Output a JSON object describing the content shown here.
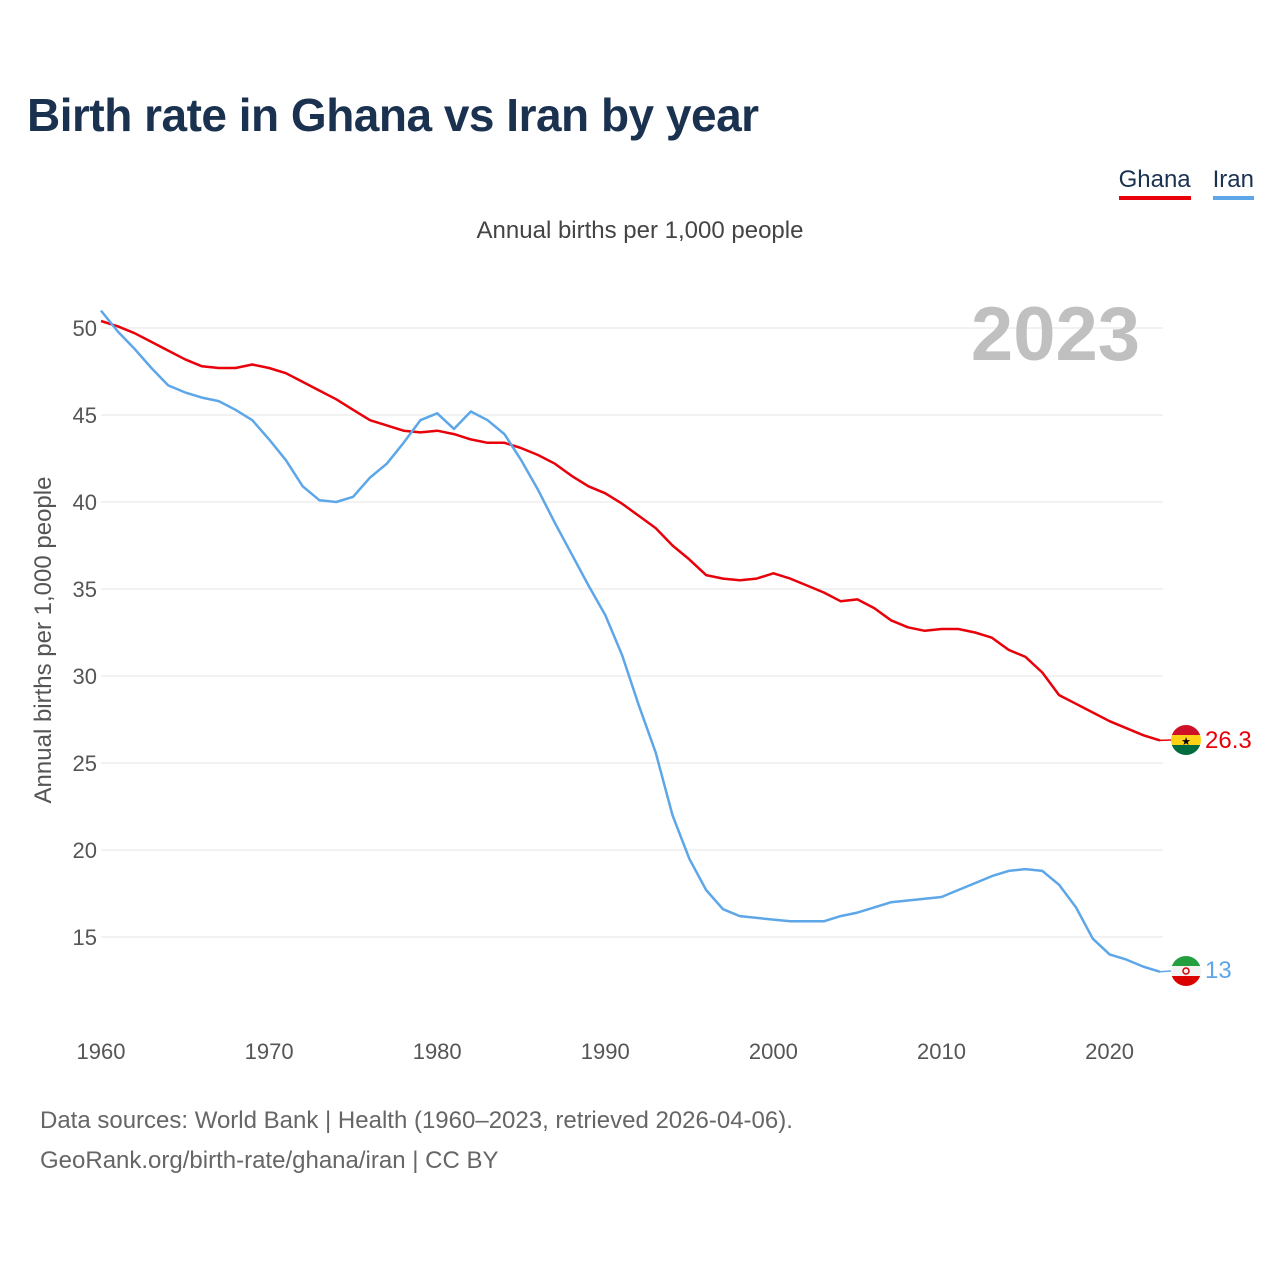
{
  "title": "Birth rate in Ghana vs Iran by year",
  "subtitle": "Annual births per 1,000 people",
  "legend": [
    "Ghana",
    "Iran"
  ],
  "footer": {
    "line1": "Data sources: World Bank | Health (1960–2023, retrieved 2026-04-06).",
    "line2": "GeoRank.org/birth-rate/ghana/iran | CC BY"
  },
  "colors": {
    "ghana": "#e8000b",
    "iran": "#5da6e8",
    "title": "#1a3150"
  },
  "chart_data": {
    "type": "line",
    "title": "Birth rate in Ghana vs Iran by year",
    "subtitle": "Annual births per 1,000 people",
    "xlabel": "",
    "ylabel": "Annual births per 1,000 people",
    "xlim": [
      1960,
      2023
    ],
    "ylim": [
      10.5,
      51.5
    ],
    "xticks": [
      1960,
      1970,
      1980,
      1990,
      2000,
      2010,
      2020
    ],
    "yticks": [
      15,
      20,
      25,
      30,
      35,
      40,
      45,
      50
    ],
    "grid": true,
    "legend_position": "top-right",
    "current_year": "2023",
    "x": [
      1960,
      1961,
      1962,
      1963,
      1964,
      1965,
      1966,
      1967,
      1968,
      1969,
      1970,
      1971,
      1972,
      1973,
      1974,
      1975,
      1976,
      1977,
      1978,
      1979,
      1980,
      1981,
      1982,
      1983,
      1984,
      1985,
      1986,
      1987,
      1988,
      1989,
      1990,
      1991,
      1992,
      1993,
      1994,
      1995,
      1996,
      1997,
      1998,
      1999,
      2000,
      2001,
      2002,
      2003,
      2004,
      2005,
      2006,
      2007,
      2008,
      2009,
      2010,
      2011,
      2012,
      2013,
      2014,
      2015,
      2016,
      2017,
      2018,
      2019,
      2020,
      2021,
      2022,
      2023
    ],
    "series": [
      {
        "name": "Ghana",
        "color": "#e8000b",
        "end_label": "26.3",
        "values": [
          50.4,
          50.1,
          49.7,
          49.2,
          48.7,
          48.2,
          47.8,
          47.7,
          47.7,
          47.9,
          47.7,
          47.4,
          46.9,
          46.4,
          45.9,
          45.3,
          44.7,
          44.4,
          44.1,
          44.0,
          44.1,
          43.9,
          43.6,
          43.4,
          43.4,
          43.1,
          42.7,
          42.2,
          41.5,
          40.9,
          40.5,
          39.9,
          39.2,
          38.5,
          37.5,
          36.7,
          35.8,
          35.6,
          35.5,
          35.6,
          35.9,
          35.6,
          35.2,
          34.8,
          34.3,
          34.4,
          33.9,
          33.2,
          32.8,
          32.6,
          32.7,
          32.7,
          32.5,
          32.2,
          31.5,
          31.1,
          30.2,
          28.9,
          28.4,
          27.9,
          27.4,
          27.0,
          26.6,
          26.3
        ]
      },
      {
        "name": "Iran",
        "color": "#5da6e8",
        "end_label": "13",
        "values": [
          51.0,
          49.8,
          48.8,
          47.7,
          46.7,
          46.3,
          46.0,
          45.8,
          45.3,
          44.7,
          43.6,
          42.4,
          40.9,
          40.1,
          40.0,
          40.3,
          41.4,
          42.2,
          43.4,
          44.7,
          45.1,
          44.2,
          45.2,
          44.7,
          43.9,
          42.4,
          40.7,
          38.8,
          37.0,
          35.2,
          33.5,
          31.2,
          28.3,
          25.6,
          22.0,
          19.5,
          17.7,
          16.6,
          16.2,
          16.1,
          16.0,
          15.9,
          15.9,
          15.9,
          16.2,
          16.4,
          16.7,
          17.0,
          17.1,
          17.2,
          17.3,
          17.7,
          18.1,
          18.5,
          18.8,
          18.9,
          18.8,
          18.0,
          16.7,
          14.9,
          14.0,
          13.7,
          13.3,
          13.0
        ]
      }
    ]
  }
}
